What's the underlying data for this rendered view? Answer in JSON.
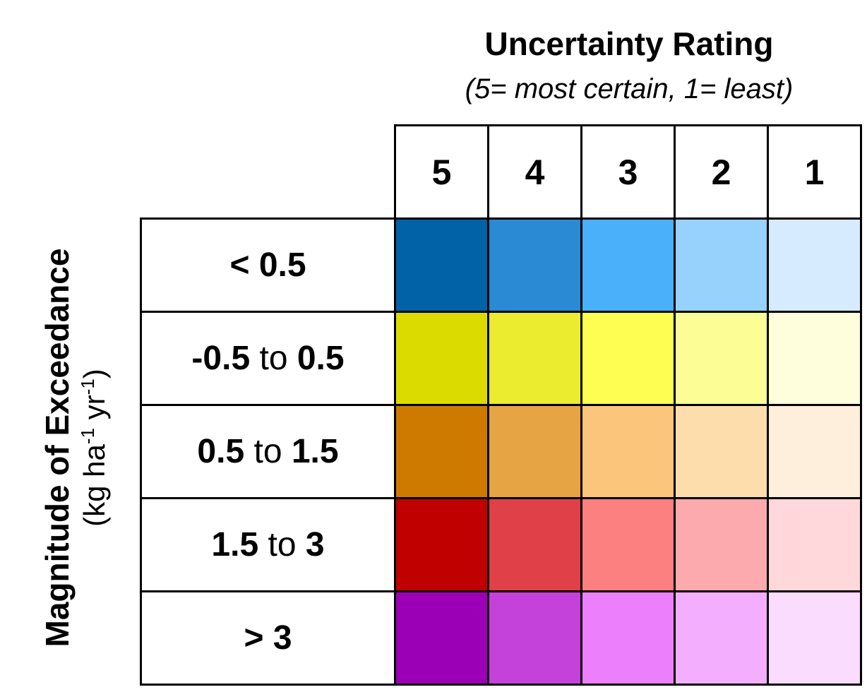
{
  "header": {
    "title": "Uncertainty Rating",
    "subtitle": "(5= most certain, 1= least)"
  },
  "side_label": {
    "title": "Magnitude of Exceedance",
    "unit_parts": [
      "(kg ha",
      "-1",
      " yr",
      "-1",
      ")"
    ]
  },
  "columns": [
    "5",
    "4",
    "3",
    "2",
    "1"
  ],
  "rows": [
    {
      "parts": [
        {
          "text": "< 0.5",
          "bold": true
        }
      ],
      "colors": [
        "#0262A8",
        "#2A8AD4",
        "#4AB0FA",
        "#96D2FC",
        "#D7EBFE"
      ]
    },
    {
      "parts": [
        {
          "text": "-0.5",
          "bold": true
        },
        {
          "text": " to ",
          "bold": false
        },
        {
          "text": "0.5",
          "bold": true
        }
      ],
      "colors": [
        "#DBDB00",
        "#EBEB30",
        "#FDFD52",
        "#FDFD96",
        "#FEFEDC"
      ]
    },
    {
      "parts": [
        {
          "text": "0.5",
          "bold": true
        },
        {
          "text": " to ",
          "bold": false
        },
        {
          "text": "1.5",
          "bold": true
        }
      ],
      "colors": [
        "#CE7A00",
        "#E6A444",
        "#FCC57C",
        "#FEDDAC",
        "#FEEEDC"
      ]
    },
    {
      "parts": [
        {
          "text": "1.5",
          "bold": true
        },
        {
          "text": " to ",
          "bold": false
        },
        {
          "text": "3",
          "bold": true
        }
      ],
      "colors": [
        "#C00000",
        "#E04048",
        "#FC8080",
        "#FCAAAE",
        "#FED8DA"
      ]
    },
    {
      "parts": [
        {
          "text": "> 3",
          "bold": true
        }
      ],
      "colors": [
        "#9C00B6",
        "#C442DA",
        "#EC80FC",
        "#F4AEFE",
        "#FADCFE"
      ]
    }
  ]
}
